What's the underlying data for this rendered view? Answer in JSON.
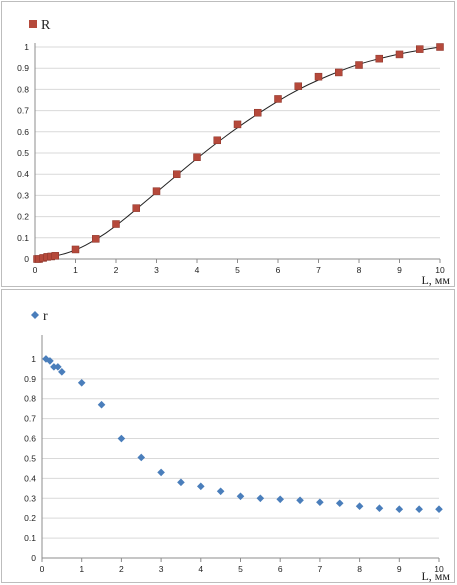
{
  "chart_data": [
    {
      "type": "scatter",
      "xlabel": "L, мм",
      "ylabel": "",
      "xlim": [
        0,
        10
      ],
      "ylim": [
        0,
        1
      ],
      "x_ticks": [
        "0",
        "1",
        "2",
        "3",
        "4",
        "5",
        "6",
        "7",
        "8",
        "9",
        "10"
      ],
      "y_ticks": [
        "0",
        "0.1",
        "0.2",
        "0.3",
        "0.4",
        "0.5",
        "0.6",
        "0.7",
        "0.8",
        "0.9",
        "1"
      ],
      "grid": true,
      "legend_position": "top-left",
      "marker": "square",
      "color": "#b5493b",
      "line_color": "#222222",
      "series": [
        {
          "name": "R",
          "x": [
            0.05,
            0.1,
            0.2,
            0.3,
            0.4,
            0.5,
            1,
            1.5,
            2,
            2.5,
            3,
            3.5,
            4,
            4.5,
            5,
            5.5,
            6,
            6.5,
            7,
            7.5,
            8,
            8.5,
            9,
            9.5,
            10
          ],
          "y": [
            0.0,
            0.0,
            0.005,
            0.01,
            0.012,
            0.015,
            0.045,
            0.095,
            0.165,
            0.24,
            0.32,
            0.4,
            0.48,
            0.56,
            0.635,
            0.69,
            0.755,
            0.815,
            0.86,
            0.88,
            0.915,
            0.945,
            0.965,
            0.99,
            1.0
          ]
        }
      ],
      "fit_curve": {
        "x": [
          0,
          0.5,
          1,
          1.5,
          2,
          2.5,
          3,
          3.5,
          4,
          4.5,
          5,
          5.5,
          6,
          6.5,
          7,
          7.5,
          8,
          8.5,
          9,
          9.5,
          10
        ],
        "y": [
          0.0,
          0.012,
          0.04,
          0.09,
          0.155,
          0.235,
          0.315,
          0.395,
          0.475,
          0.55,
          0.62,
          0.685,
          0.745,
          0.8,
          0.845,
          0.885,
          0.92,
          0.945,
          0.968,
          0.985,
          1.0
        ]
      }
    },
    {
      "type": "scatter",
      "xlabel": "L, мм",
      "ylabel": "",
      "xlim": [
        0,
        10
      ],
      "ylim": [
        0,
        1.1
      ],
      "x_ticks": [
        "0",
        "1",
        "2",
        "3",
        "4",
        "5",
        "6",
        "7",
        "8",
        "9",
        "10"
      ],
      "y_ticks": [
        "0",
        "0.1",
        "0.2",
        "0.3",
        "0.4",
        "0.5",
        "0.6",
        "0.7",
        "0.8",
        "0.9",
        "1"
      ],
      "grid": true,
      "legend_position": "top-left",
      "marker": "diamond",
      "color": "#4a7ebb",
      "series": [
        {
          "name": "r",
          "x": [
            0.1,
            0.2,
            0.3,
            0.4,
            0.5,
            1,
            1.5,
            2,
            2.5,
            3,
            3.5,
            4,
            4.5,
            5,
            5.5,
            6,
            6.5,
            7,
            7.5,
            8,
            8.5,
            9,
            9.5,
            10
          ],
          "y": [
            1.0,
            0.99,
            0.96,
            0.96,
            0.935,
            0.88,
            0.77,
            0.6,
            0.505,
            0.43,
            0.38,
            0.36,
            0.335,
            0.31,
            0.3,
            0.295,
            0.29,
            0.28,
            0.275,
            0.26,
            0.25,
            0.245,
            0.245,
            0.245
          ]
        }
      ]
    }
  ]
}
